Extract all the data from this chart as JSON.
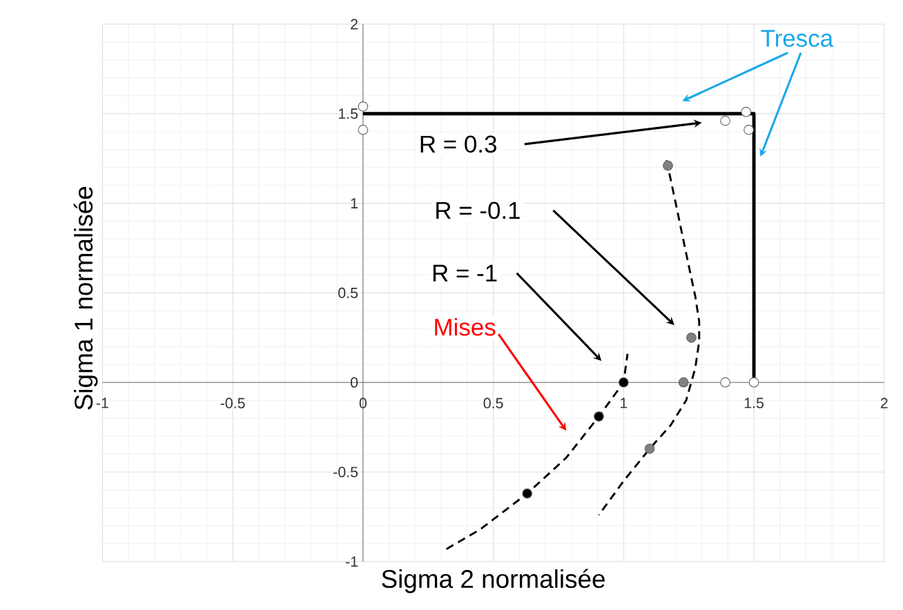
{
  "chart_data": {
    "type": "scatter",
    "xlabel": "Sigma 2 normalisée",
    "ylabel": "Sigma 1 normalisée",
    "xlim": [
      -1,
      2
    ],
    "ylim": [
      -1,
      2
    ],
    "xticks": [
      -1,
      -0.5,
      0,
      0.5,
      1,
      1.5,
      2
    ],
    "yticks": [
      -1,
      -0.5,
      0,
      0.5,
      1,
      1.5,
      2
    ],
    "grid": true,
    "series": [
      {
        "type": "line",
        "color": "#000000",
        "line_style": "solid",
        "marker": "none",
        "x": [
          0,
          1.5,
          1.5
        ],
        "values": [
          1.5,
          1.5,
          0
        ]
      },
      {
        "type": "line",
        "color": "#000000",
        "line_style": "dashed",
        "marker": "none",
        "x": [
          0.32,
          0.45,
          0.63,
          0.78,
          0.905,
          0.96,
          1.0,
          1.015
        ],
        "values": [
          -0.93,
          -0.82,
          -0.62,
          -0.42,
          -0.19,
          -0.08,
          0.0,
          0.16
        ]
      },
      {
        "type": "line",
        "color": "#000000",
        "line_style": "dashed",
        "marker": "none",
        "x": [
          1.165,
          1.2,
          1.24,
          1.275,
          1.29,
          1.29,
          1.275,
          1.24,
          1.18,
          1.1,
          1.0,
          0.905
        ],
        "values": [
          1.24,
          1.0,
          0.72,
          0.48,
          0.34,
          0.23,
          0.08,
          -0.1,
          -0.24,
          -0.37,
          -0.55,
          -0.74
        ]
      },
      {
        "color": "#ffffff",
        "marker": "circle",
        "x": [
          0,
          0,
          1.39,
          1.47,
          1.48,
          1.39,
          1.5
        ],
        "values": [
          1.54,
          1.41,
          1.46,
          1.51,
          1.41,
          0,
          0
        ]
      },
      {
        "color": "#808080",
        "marker": "circle",
        "x": [
          1.17,
          1.26,
          1.23,
          1.1
        ],
        "values": [
          1.21,
          0.25,
          0,
          -0.37
        ]
      },
      {
        "color": "#000000",
        "marker": "circle",
        "x": [
          1.0,
          0.905,
          0.63
        ],
        "values": [
          0,
          -0.19,
          -0.62
        ]
      }
    ],
    "annotations": [
      "Tresca",
      "R = 0.3",
      "R = -0.1",
      "R = -1",
      "Mises"
    ]
  }
}
